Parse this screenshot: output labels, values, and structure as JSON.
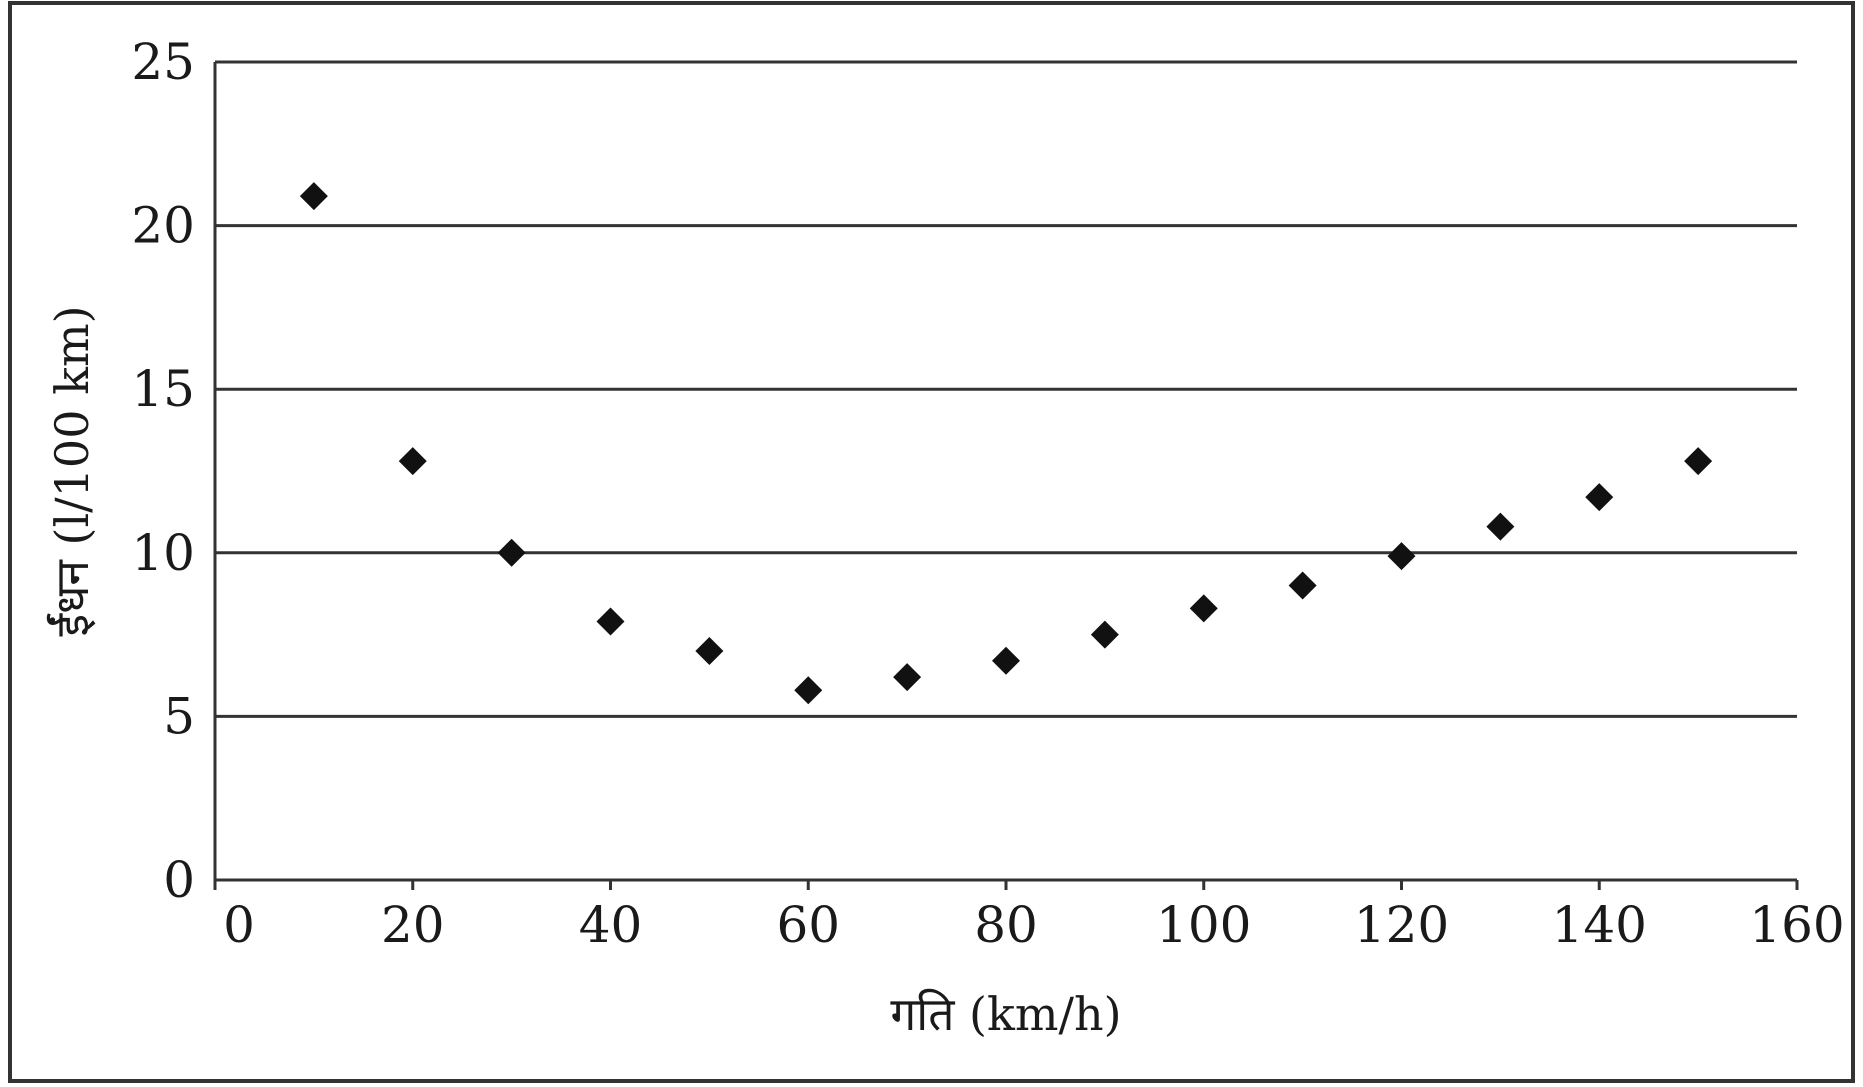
{
  "chart_data": {
    "type": "scatter",
    "title": "",
    "xlabel": "गति (km/h)",
    "ylabel": "ईंधन (l/100 km)",
    "xlim": [
      0,
      160
    ],
    "ylim": [
      0,
      25
    ],
    "x_ticks": [
      "0",
      "20",
      "40",
      "60",
      "80",
      "100",
      "120",
      "140",
      "160"
    ],
    "y_ticks": [
      "0",
      "5",
      "10",
      "15",
      "20",
      "25"
    ],
    "grid": "horizontal",
    "legend": "none",
    "marker": "diamond",
    "colors": {
      "marker": "#111111",
      "grid": "#333333",
      "frame": "#333333"
    },
    "series": [
      {
        "points": [
          {
            "x": 10,
            "y": 20.9
          },
          {
            "x": 20,
            "y": 12.8
          },
          {
            "x": 30,
            "y": 10.0
          },
          {
            "x": 40,
            "y": 7.9
          },
          {
            "x": 50,
            "y": 7.0
          },
          {
            "x": 60,
            "y": 5.8
          },
          {
            "x": 70,
            "y": 6.2
          },
          {
            "x": 80,
            "y": 6.7
          },
          {
            "x": 90,
            "y": 7.5
          },
          {
            "x": 100,
            "y": 8.3
          },
          {
            "x": 110,
            "y": 9.0
          },
          {
            "x": 120,
            "y": 9.9
          },
          {
            "x": 130,
            "y": 10.8
          },
          {
            "x": 140,
            "y": 11.7
          },
          {
            "x": 150,
            "y": 12.8
          }
        ]
      }
    ]
  }
}
